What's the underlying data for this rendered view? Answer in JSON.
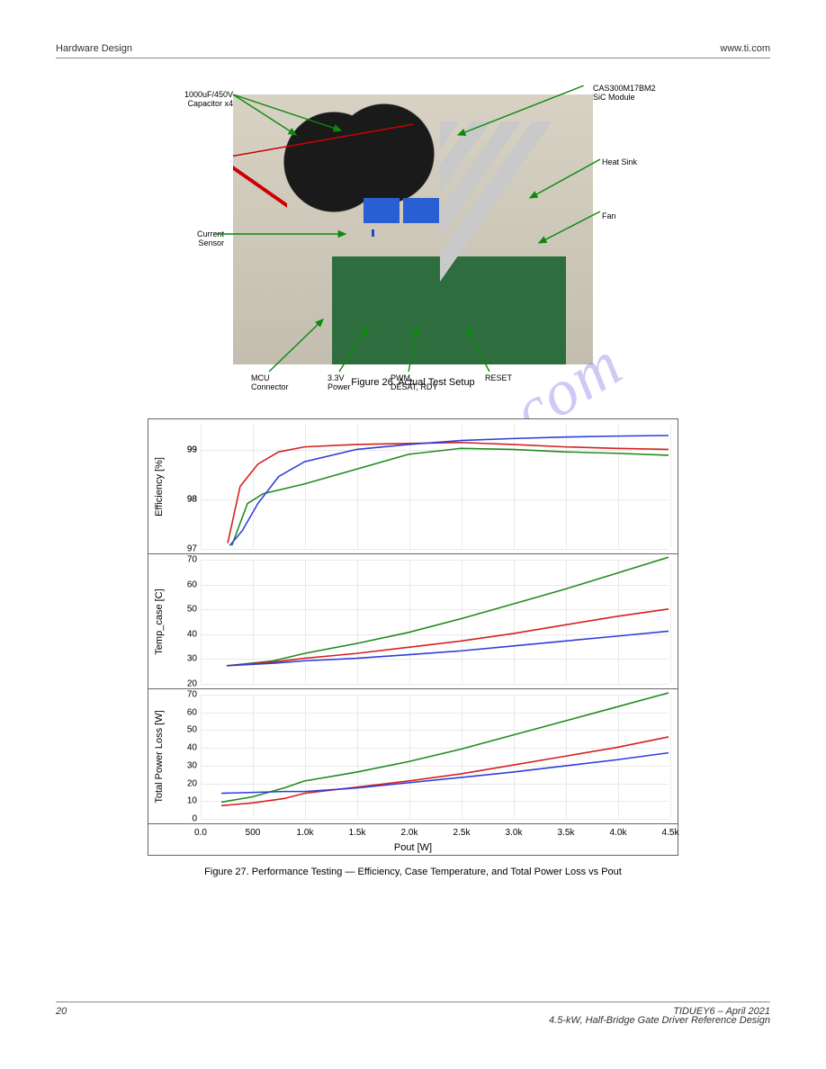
{
  "header": {
    "left": "Hardware Design",
    "right": "www.ti.com"
  },
  "footer": {
    "left": "TIDUEY6 – April 2021",
    "right": "4.5-kW, Half-Bridge Gate Driver Reference Design",
    "page_label": "20"
  },
  "watermark": "manualshive.com",
  "photo_labels": {
    "top_left": "1000uF/450V\nCapacitor x4",
    "top_right": "CAS300M17BM2\nSiC Module",
    "right_upper": "Heat Sink",
    "right_lower": "Fan",
    "left_mid": "Current\nSensor",
    "bottom_1": "MCU\nConnector",
    "bottom_2": "3.3V\nPower",
    "bottom_3": "PWM,\nDESAT, RDY",
    "bottom_4": "RESET"
  },
  "fig26_caption": "Figure 26. Actual Test Setup",
  "fig27_caption": "Figure 27. Performance Testing — Efficiency, Case Temperature, and Total Power Loss vs Pout",
  "chart": {
    "x": {
      "label": "Pout [W]",
      "min": 0,
      "max": 4500,
      "ticks": [
        "0.0",
        "500",
        "1.0k",
        "1.5k",
        "2.0k",
        "2.5k",
        "3.0k",
        "3.5k",
        "4.0k",
        "4.5k"
      ]
    },
    "colors": {
      "series_a": "#2e3edb",
      "series_b": "#d42121",
      "series_c": "#1f8b1f",
      "grid": "#e9e9e9",
      "border": "#666666",
      "background": "#ffffff",
      "text": "#000000"
    },
    "line_width": 1.6,
    "panels": [
      {
        "ylabel": "Efficiency [%]",
        "ymin": 97,
        "ymax": 99.5,
        "yticks": [
          97,
          98,
          98,
          99,
          99
        ],
        "ytick_labels": [
          "97",
          "98",
          "98",
          "99",
          "99"
        ],
        "series": {
          "a_x": [
            280,
            400,
            550,
            750,
            1000,
            1500,
            2000,
            2500,
            3000,
            3500,
            4000,
            4500
          ],
          "a_y": [
            97.05,
            97.35,
            97.9,
            98.45,
            98.75,
            99.0,
            99.1,
            99.18,
            99.22,
            99.25,
            99.27,
            99.28
          ],
          "b_x": [
            260,
            380,
            550,
            750,
            1000,
            1500,
            2000,
            2500,
            3000,
            3500,
            4000,
            4500
          ],
          "b_y": [
            97.1,
            98.25,
            98.7,
            98.95,
            99.05,
            99.1,
            99.12,
            99.14,
            99.1,
            99.05,
            99.02,
            99.0
          ],
          "c_x": [
            300,
            450,
            600,
            800,
            1000,
            1500,
            2000,
            2500,
            3000,
            3500,
            4000,
            4500
          ],
          "c_y": [
            97.05,
            97.9,
            98.1,
            98.2,
            98.3,
            98.6,
            98.9,
            99.02,
            99.0,
            98.95,
            98.92,
            98.88
          ]
        }
      },
      {
        "ylabel": "Temp_case [C]",
        "ymin": 20,
        "ymax": 70,
        "yticks": [
          20,
          30,
          40,
          50,
          60,
          70
        ],
        "ytick_labels": [
          "20",
          "30",
          "40",
          "50",
          "60",
          "70"
        ],
        "series": {
          "a_x": [
            250,
            700,
            1000,
            1500,
            2000,
            2500,
            3000,
            3500,
            4000,
            4500
          ],
          "a_y": [
            27,
            28,
            29,
            30,
            31.5,
            33,
            35,
            37,
            39,
            41
          ],
          "b_x": [
            250,
            700,
            1000,
            1500,
            2000,
            2500,
            3000,
            3500,
            4000,
            4500
          ],
          "b_y": [
            27,
            28.5,
            30,
            32,
            34.5,
            37,
            40,
            43.5,
            47,
            50
          ],
          "c_x": [
            250,
            700,
            1000,
            1500,
            2000,
            2500,
            3000,
            3500,
            4000,
            4500
          ],
          "c_y": [
            27,
            29,
            32,
            36,
            40.5,
            46,
            52,
            58,
            64.5,
            71
          ]
        }
      },
      {
        "ylabel": "Total Power Loss [W]",
        "ymin": 0,
        "ymax": 70,
        "yticks": [
          0,
          10,
          20,
          30,
          40,
          50,
          60,
          70
        ],
        "ytick_labels": [
          "0",
          "10",
          "20",
          "30",
          "40",
          "50",
          "60",
          "70"
        ],
        "series": {
          "a_x": [
            200,
            500,
            800,
            1000,
            1500,
            2000,
            2500,
            3000,
            3500,
            4000,
            4500
          ],
          "a_y": [
            14,
            14.5,
            15,
            15,
            17,
            20,
            23,
            26,
            29.5,
            33,
            37
          ],
          "b_x": [
            200,
            500,
            800,
            1000,
            1500,
            2000,
            2500,
            3000,
            3500,
            4000,
            4500
          ],
          "b_y": [
            7,
            8.5,
            11,
            14,
            17.5,
            21,
            25,
            30,
            35,
            40,
            46
          ],
          "c_x": [
            200,
            500,
            800,
            1000,
            1500,
            2000,
            2500,
            3000,
            3500,
            4000,
            4500
          ],
          "c_y": [
            9,
            12,
            17,
            21,
            26,
            32,
            39,
            47,
            55,
            63,
            71
          ]
        }
      }
    ]
  }
}
